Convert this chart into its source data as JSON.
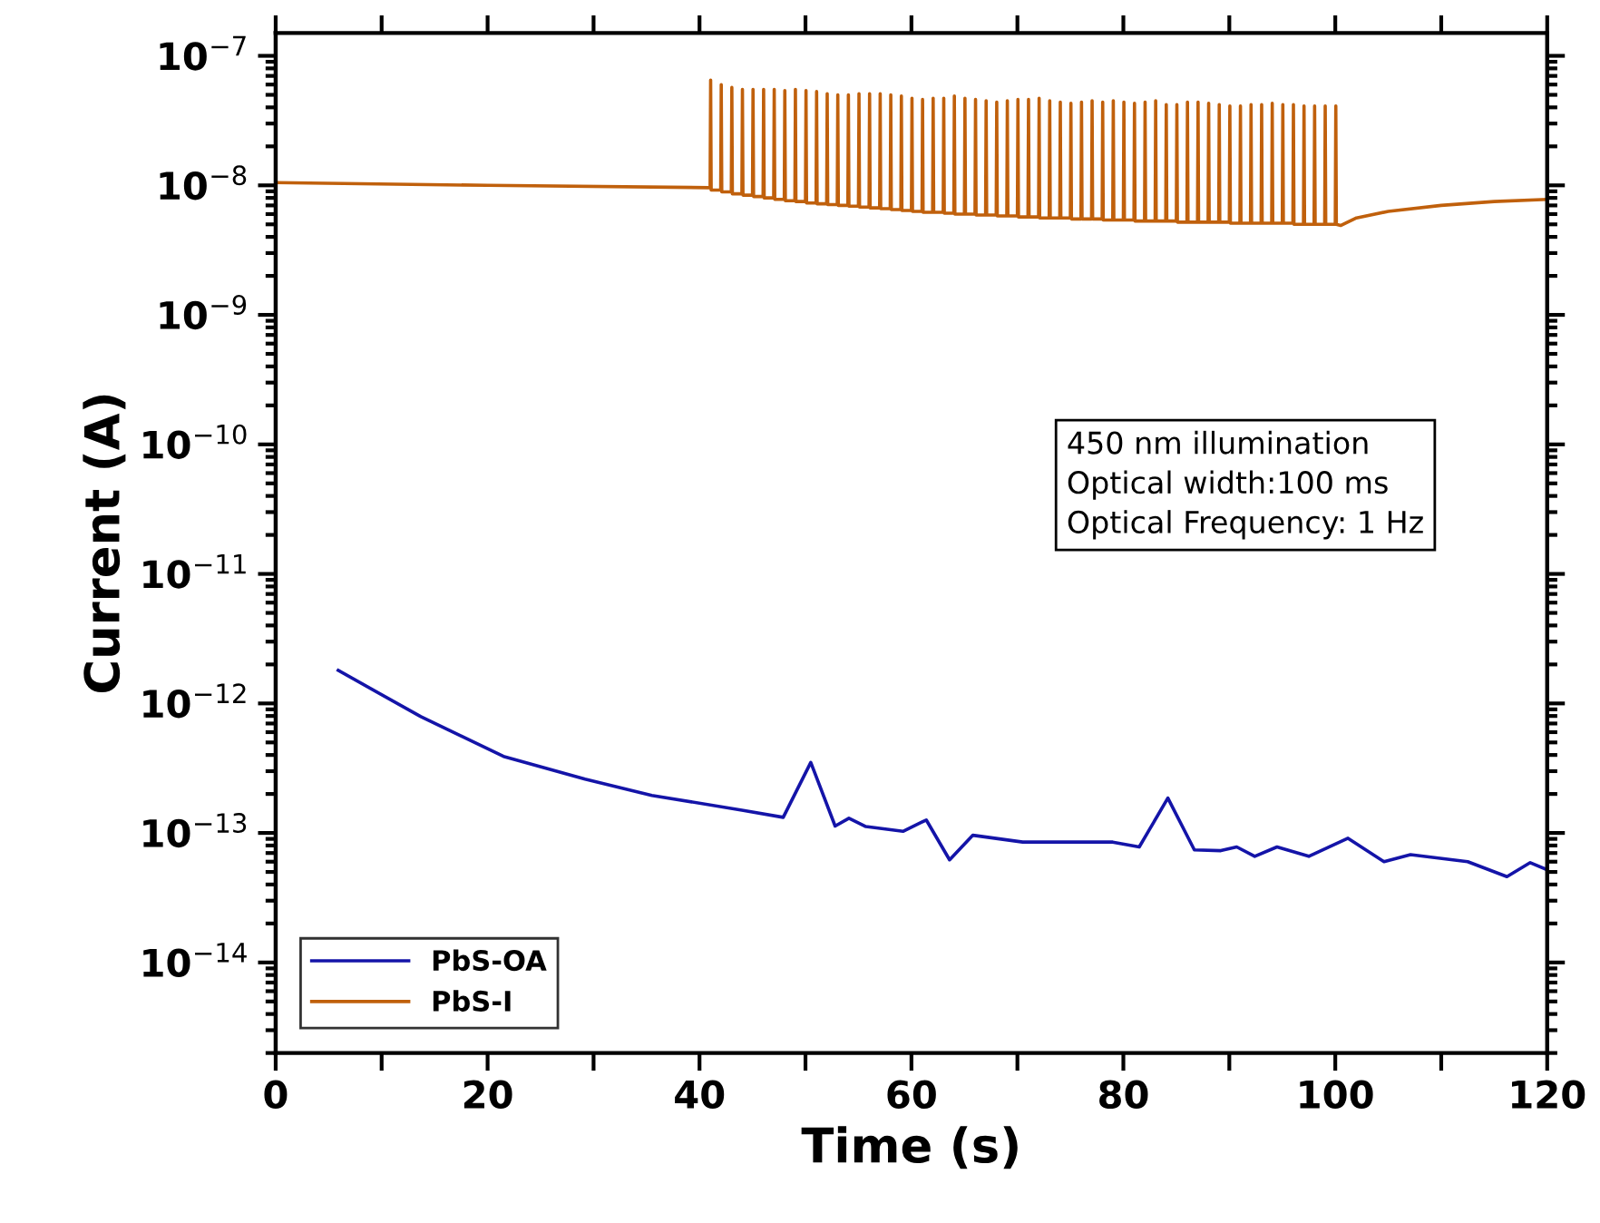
{
  "chart_data": {
    "type": "line",
    "xlabel": "Time (s)",
    "ylabel": "Current (A)",
    "annotations": [
      "450 nm illumination",
      "Optical width:100 ms",
      "Optical Frequency: 1 Hz"
    ],
    "log": "y",
    "xlim": [
      0,
      120
    ],
    "xticks": [
      0,
      {
        "value": 10,
        "label": null
      },
      20,
      {
        "value": 30,
        "label": null
      },
      40,
      {
        "value": 50,
        "label": null
      },
      60,
      {
        "value": 70,
        "label": null
      },
      80,
      {
        "value": 90,
        "label": null
      },
      100,
      {
        "value": 110,
        "label": null
      },
      120
    ],
    "ylim": [
      2e-15,
      1.5e-07
    ],
    "yticks": [
      {
        "value": 1e-14,
        "label": "10$^{−14}$"
      },
      {
        "value": 1e-13,
        "label": "10$^{−13}$"
      },
      {
        "value": 1e-12,
        "label": "10$^{−12}$"
      },
      {
        "value": 1e-11,
        "label": "10$^{−11}$"
      },
      {
        "value": 1e-10,
        "label": "10$^{−10}$"
      },
      {
        "value": 1e-09,
        "label": "10$^{−9}$"
      },
      {
        "value": 1e-08,
        "label": "10$^{−8}$"
      },
      {
        "value": 1e-07,
        "label": "10$^{−7}$"
      }
    ],
    "grid": false,
    "legend": "bottom left",
    "marker": "none",
    "line_style": "solid",
    "series": [
      {
        "name": "PbS-OA",
        "color": "#1414a8",
        "x": [
          5.9,
          13.7,
          21.5,
          29.2,
          35.5,
          44.0,
          47.9,
          50.5,
          52.8,
          54.1,
          55.7,
          59.2,
          61.4,
          63.6,
          65.8,
          70.5,
          75.2,
          79.0,
          81.5,
          84.2,
          86.7,
          89.2,
          90.7,
          92.4,
          94.5,
          97.5,
          101.2,
          104.6,
          107.1,
          112.5,
          116.2,
          118.4,
          120
        ],
        "values": [
          1.8e-12,
          7.9e-13,
          3.9e-13,
          2.6e-13,
          1.95e-13,
          1.5e-13,
          1.32e-13,
          3.5e-13,
          1.13e-13,
          1.3e-13,
          1.12e-13,
          1.03e-13,
          1.26e-13,
          6.2e-14,
          9.6e-14,
          8.5e-14,
          8.5e-14,
          8.5e-14,
          7.8e-14,
          1.86e-13,
          7.4e-14,
          7.3e-14,
          7.8e-14,
          6.6e-14,
          7.8e-14,
          6.6e-14,
          9.1e-14,
          6e-14,
          6.8e-14,
          6e-14,
          4.6e-14,
          5.9e-14,
          5.2e-14
        ]
      },
      {
        "name": "PbS-I",
        "color": "#c0600c",
        "x": [
          0,
          20,
          40.9,
          41,
          41.05,
          41.1,
          42,
          42.05,
          42.1,
          43,
          43.05,
          43.1,
          44,
          44.05,
          44.1,
          45,
          45.05,
          45.1,
          46,
          46.05,
          46.1,
          47,
          47.05,
          47.1,
          48,
          48.05,
          48.1,
          49,
          49.05,
          49.1,
          50,
          50.05,
          50.1,
          51,
          51.05,
          51.1,
          52,
          52.05,
          52.1,
          53,
          53.05,
          53.1,
          54,
          54.05,
          54.1,
          55,
          55.05,
          55.1,
          56,
          56.05,
          56.1,
          57,
          57.05,
          57.1,
          58,
          58.05,
          58.1,
          59,
          59.05,
          59.1,
          60,
          60.05,
          60.1,
          61,
          61.05,
          61.1,
          62,
          62.05,
          62.1,
          63,
          63.05,
          63.1,
          64,
          64.05,
          64.1,
          65,
          65.05,
          65.1,
          66,
          66.05,
          66.1,
          67,
          67.05,
          67.1,
          68,
          68.05,
          68.1,
          69,
          69.05,
          69.1,
          70,
          70.05,
          70.1,
          71,
          71.05,
          71.1,
          72,
          72.05,
          72.1,
          73,
          73.05,
          73.1,
          74,
          74.05,
          74.1,
          75,
          75.05,
          75.1,
          76,
          76.05,
          76.1,
          77,
          77.05,
          77.1,
          78,
          78.05,
          78.1,
          79,
          79.05,
          79.1,
          80,
          80.05,
          80.1,
          81,
          81.05,
          81.1,
          82,
          82.05,
          82.1,
          83,
          83.05,
          83.1,
          84,
          84.05,
          84.1,
          85,
          85.05,
          85.1,
          86,
          86.05,
          86.1,
          87,
          87.05,
          87.1,
          88,
          88.05,
          88.1,
          89,
          89.05,
          89.1,
          90,
          90.05,
          90.1,
          91,
          91.05,
          91.1,
          92,
          92.05,
          92.1,
          93,
          93.05,
          93.1,
          94,
          94.05,
          94.1,
          95,
          95.05,
          95.1,
          96,
          96.05,
          96.1,
          97,
          97.05,
          97.1,
          98,
          98.05,
          98.1,
          99,
          99.05,
          99.1,
          100,
          100.05,
          100.1,
          100.5,
          102,
          105,
          110,
          115,
          120
        ],
        "values": [
          1.05e-08,
          1e-08,
          9.6e-09,
          9.6e-09,
          6.5e-08,
          9.2e-09,
          9.2e-09,
          6e-08,
          8.9e-09,
          8.9e-09,
          5.7e-08,
          8.6e-09,
          8.6e-09,
          5.5e-08,
          8.4e-09,
          8.4e-09,
          5.5e-08,
          8.2e-09,
          8.2e-09,
          5.5e-08,
          8e-09,
          8e-09,
          5.5e-08,
          7.8e-09,
          7.8e-09,
          5.4e-08,
          7.6e-09,
          7.6e-09,
          5.5e-08,
          7.5e-09,
          7.5e-09,
          5.4e-08,
          7.3e-09,
          7.3e-09,
          5.3e-08,
          7.2e-09,
          7.2e-09,
          5.1e-08,
          7.1e-09,
          7.1e-09,
          5e-08,
          7e-09,
          7e-09,
          5e-08,
          6.9e-09,
          6.9e-09,
          5.1e-08,
          6.8e-09,
          6.8e-09,
          5.1e-08,
          6.7e-09,
          6.7e-09,
          5.1e-08,
          6.6e-09,
          6.6e-09,
          5e-08,
          6.5e-09,
          6.5e-09,
          4.9e-08,
          6.4e-09,
          6.4e-09,
          4.7e-08,
          6.3e-09,
          6.3e-09,
          4.6e-08,
          6.2e-09,
          6.2e-09,
          4.7e-08,
          6.2e-09,
          6.2e-09,
          4.7e-08,
          6.1e-09,
          6.1e-09,
          4.9e-08,
          6e-09,
          6e-09,
          4.7e-08,
          6e-09,
          6e-09,
          4.6e-08,
          5.9e-09,
          5.9e-09,
          4.5e-08,
          5.9e-09,
          5.9e-09,
          4.4e-08,
          5.8e-09,
          5.8e-09,
          4.5e-08,
          5.8e-09,
          5.8e-09,
          4.6e-08,
          5.7e-09,
          5.7e-09,
          4.6e-08,
          5.7e-09,
          5.7e-09,
          4.7e-08,
          5.6e-09,
          5.6e-09,
          4.5e-08,
          5.6e-09,
          5.6e-09,
          4.4e-08,
          5.6e-09,
          5.6e-09,
          4.3e-08,
          5.5e-09,
          5.5e-09,
          4.4e-08,
          5.5e-09,
          5.5e-09,
          4.5e-08,
          5.5e-09,
          5.5e-09,
          4.4e-08,
          5.4e-09,
          5.4e-09,
          4.5e-08,
          5.4e-09,
          5.4e-09,
          4.4e-08,
          5.4e-09,
          5.4e-09,
          4.3e-08,
          5.3e-09,
          5.3e-09,
          4.4e-08,
          5.3e-09,
          5.3e-09,
          4.5e-08,
          5.3e-09,
          5.3e-09,
          4.2e-08,
          5.3e-09,
          5.3e-09,
          4.2e-08,
          5.2e-09,
          5.2e-09,
          4.4e-08,
          5.2e-09,
          5.2e-09,
          4.4e-08,
          5.2e-09,
          5.2e-09,
          4.3e-08,
          5.2e-09,
          5.2e-09,
          4.2e-08,
          5.2e-09,
          5.2e-09,
          4.1e-08,
          5.1e-09,
          5.1e-09,
          4.1e-08,
          5.1e-09,
          5.1e-09,
          4.2e-08,
          5.1e-09,
          5.1e-09,
          4.2e-08,
          5.1e-09,
          5.1e-09,
          4.3e-08,
          5.1e-09,
          5.1e-09,
          4.2e-08,
          5.1e-09,
          5.1e-09,
          4.2e-08,
          5e-09,
          5e-09,
          4.1e-08,
          5e-09,
          5e-09,
          4.1e-08,
          5e-09,
          5e-09,
          4.1e-08,
          5e-09,
          5e-09,
          4.1e-08,
          5e-09,
          4.9e-09,
          5.6e-09,
          6.3e-09,
          7e-09,
          7.5e-09,
          7.8e-09
        ]
      }
    ]
  }
}
